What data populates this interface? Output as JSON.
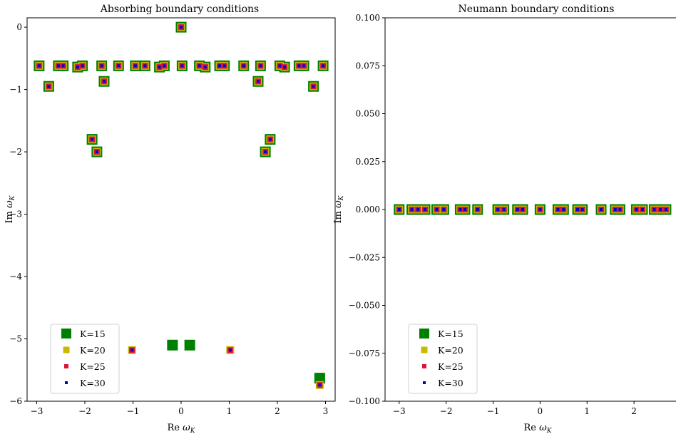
{
  "chart_data": [
    {
      "type": "scatter",
      "title": "Absorbing boundary conditions",
      "xlabel": "Re ω_K",
      "ylabel": "Im ω_K",
      "xlim": [
        -3.2,
        3.2
      ],
      "ylim": [
        -6.0,
        0.15
      ],
      "xticks": [
        -3,
        -2,
        -1,
        0,
        1,
        2,
        3
      ],
      "xtick_labels": [
        "−3",
        "−2",
        "−1",
        "0",
        "1",
        "2",
        "3"
      ],
      "yticks": [
        0,
        -1,
        -2,
        -3,
        -4,
        -5,
        -6
      ],
      "ytick_labels": [
        "0",
        "−1",
        "−2",
        "−3",
        "−4",
        "−5",
        "−6"
      ],
      "grid": false,
      "legend": "lower-left",
      "series": [
        {
          "name": "K=15",
          "color": "#008000",
          "marker": "square-large",
          "points": [
            [
              0,
              0
            ],
            [
              -2.95,
              -0.62
            ],
            [
              -2.55,
              -0.62
            ],
            [
              -2.45,
              -0.62
            ],
            [
              -2.15,
              -0.64
            ],
            [
              -2.05,
              -0.62
            ],
            [
              -1.65,
              -0.62
            ],
            [
              -1.3,
              -0.62
            ],
            [
              -0.95,
              -0.62
            ],
            [
              -0.75,
              -0.62
            ],
            [
              -0.45,
              -0.64
            ],
            [
              -0.35,
              -0.62
            ],
            [
              0.02,
              -0.62
            ],
            [
              0.38,
              -0.62
            ],
            [
              0.5,
              -0.64
            ],
            [
              0.8,
              -0.62
            ],
            [
              0.9,
              -0.62
            ],
            [
              1.3,
              -0.62
            ],
            [
              1.65,
              -0.62
            ],
            [
              2.05,
              -0.62
            ],
            [
              2.15,
              -0.64
            ],
            [
              2.45,
              -0.62
            ],
            [
              2.55,
              -0.62
            ],
            [
              2.95,
              -0.62
            ],
            [
              -2.75,
              -0.95
            ],
            [
              2.75,
              -0.95
            ],
            [
              -1.6,
              -0.87
            ],
            [
              1.6,
              -0.87
            ],
            [
              -1.85,
              -1.8
            ],
            [
              1.85,
              -1.8
            ],
            [
              -1.75,
              -2.0
            ],
            [
              1.75,
              -2.0
            ],
            [
              -0.18,
              -5.1
            ],
            [
              0.18,
              -5.1
            ],
            [
              2.88,
              -5.63
            ]
          ]
        },
        {
          "name": "K=20",
          "color": "#c8b800",
          "marker": "square",
          "points": [
            [
              0,
              0
            ],
            [
              -2.95,
              -0.62
            ],
            [
              -2.55,
              -0.62
            ],
            [
              -2.45,
              -0.62
            ],
            [
              -2.15,
              -0.64
            ],
            [
              -2.05,
              -0.62
            ],
            [
              -1.65,
              -0.62
            ],
            [
              -1.3,
              -0.62
            ],
            [
              -0.95,
              -0.62
            ],
            [
              -0.75,
              -0.62
            ],
            [
              -0.45,
              -0.64
            ],
            [
              -0.35,
              -0.62
            ],
            [
              0.02,
              -0.62
            ],
            [
              0.38,
              -0.62
            ],
            [
              0.5,
              -0.64
            ],
            [
              0.8,
              -0.62
            ],
            [
              0.9,
              -0.62
            ],
            [
              1.3,
              -0.62
            ],
            [
              1.65,
              -0.62
            ],
            [
              2.05,
              -0.62
            ],
            [
              2.15,
              -0.64
            ],
            [
              2.45,
              -0.62
            ],
            [
              2.55,
              -0.62
            ],
            [
              2.95,
              -0.62
            ],
            [
              -2.75,
              -0.95
            ],
            [
              2.75,
              -0.95
            ],
            [
              -1.6,
              -0.87
            ],
            [
              1.6,
              -0.87
            ],
            [
              -1.85,
              -1.8
            ],
            [
              1.85,
              -1.8
            ],
            [
              -1.75,
              -2.0
            ],
            [
              1.75,
              -2.0
            ],
            [
              -1.02,
              -5.18
            ],
            [
              1.02,
              -5.18
            ],
            [
              2.88,
              -5.74
            ]
          ]
        },
        {
          "name": "K=25",
          "color": "#dc143c",
          "marker": "square-small",
          "points": [
            [
              0,
              0
            ],
            [
              -2.95,
              -0.62
            ],
            [
              -2.55,
              -0.62
            ],
            [
              -2.45,
              -0.62
            ],
            [
              -2.15,
              -0.64
            ],
            [
              -2.05,
              -0.62
            ],
            [
              -1.65,
              -0.62
            ],
            [
              -1.3,
              -0.62
            ],
            [
              -0.95,
              -0.62
            ],
            [
              -0.75,
              -0.62
            ],
            [
              -0.45,
              -0.64
            ],
            [
              -0.35,
              -0.62
            ],
            [
              0.02,
              -0.62
            ],
            [
              0.38,
              -0.62
            ],
            [
              0.5,
              -0.64
            ],
            [
              0.8,
              -0.62
            ],
            [
              0.9,
              -0.62
            ],
            [
              1.3,
              -0.62
            ],
            [
              1.65,
              -0.62
            ],
            [
              2.05,
              -0.62
            ],
            [
              2.15,
              -0.64
            ],
            [
              2.45,
              -0.62
            ],
            [
              2.55,
              -0.62
            ],
            [
              2.95,
              -0.62
            ],
            [
              -2.75,
              -0.95
            ],
            [
              2.75,
              -0.95
            ],
            [
              -1.6,
              -0.87
            ],
            [
              1.6,
              -0.87
            ],
            [
              -1.85,
              -1.8
            ],
            [
              1.85,
              -1.8
            ],
            [
              -1.75,
              -2.0
            ],
            [
              1.75,
              -2.0
            ],
            [
              -1.02,
              -5.18
            ],
            [
              1.02,
              -5.18
            ],
            [
              2.88,
              -5.74
            ]
          ]
        },
        {
          "name": "K=30",
          "color": "#0000cd",
          "marker": "square-tiny",
          "points": [
            [
              0,
              0
            ],
            [
              -2.95,
              -0.62
            ],
            [
              -2.55,
              -0.62
            ],
            [
              -2.45,
              -0.62
            ],
            [
              -2.15,
              -0.64
            ],
            [
              -2.05,
              -0.62
            ],
            [
              -1.65,
              -0.62
            ],
            [
              -1.3,
              -0.62
            ],
            [
              -0.95,
              -0.62
            ],
            [
              -0.75,
              -0.62
            ],
            [
              -0.45,
              -0.64
            ],
            [
              -0.35,
              -0.62
            ],
            [
              0.02,
              -0.62
            ],
            [
              0.38,
              -0.62
            ],
            [
              0.5,
              -0.64
            ],
            [
              0.8,
              -0.62
            ],
            [
              0.9,
              -0.62
            ],
            [
              1.3,
              -0.62
            ],
            [
              1.65,
              -0.62
            ],
            [
              2.05,
              -0.62
            ],
            [
              2.15,
              -0.64
            ],
            [
              2.45,
              -0.62
            ],
            [
              2.55,
              -0.62
            ],
            [
              2.95,
              -0.62
            ],
            [
              -2.75,
              -0.95
            ],
            [
              2.75,
              -0.95
            ],
            [
              -1.6,
              -0.87
            ],
            [
              1.6,
              -0.87
            ],
            [
              -1.85,
              -1.8
            ],
            [
              1.85,
              -1.8
            ],
            [
              -1.75,
              -2.0
            ],
            [
              1.75,
              -2.0
            ],
            [
              -1.02,
              -5.18
            ],
            [
              1.02,
              -5.18
            ],
            [
              2.88,
              -5.74
            ]
          ]
        }
      ]
    },
    {
      "type": "scatter",
      "title": "Neumann boundary conditions",
      "xlabel": "Re ω_K",
      "ylabel": "Im ω_K",
      "xlim": [
        -3.3,
        3.0
      ],
      "ylim": [
        -0.1,
        0.1
      ],
      "xticks": [
        -3,
        -2,
        -1,
        0,
        1,
        2,
        3
      ],
      "xtick_labels": [
        "−3",
        "−2",
        "−1",
        "0",
        "1",
        "2",
        "3"
      ],
      "yticks": [
        0.1,
        0.075,
        0.05,
        0.025,
        0.0,
        -0.025,
        -0.05,
        -0.075,
        -0.1
      ],
      "ytick_labels": [
        "0.100",
        "0.075",
        "0.050",
        "0.025",
        "0.000",
        "−0.025",
        "−0.050",
        "−0.075",
        "−0.100"
      ],
      "grid": false,
      "legend": "lower-left",
      "series": [
        {
          "name": "K=15",
          "color": "#008000",
          "marker": "square-large",
          "points": [
            [
              -3.0,
              0
            ],
            [
              -2.73,
              0
            ],
            [
              -2.6,
              0
            ],
            [
              -2.45,
              0
            ],
            [
              -2.2,
              0
            ],
            [
              -2.05,
              0
            ],
            [
              -1.7,
              0
            ],
            [
              -1.6,
              0
            ],
            [
              -1.33,
              0
            ],
            [
              -0.9,
              0
            ],
            [
              -0.77,
              0
            ],
            [
              -0.48,
              0
            ],
            [
              -0.37,
              0
            ],
            [
              0.0,
              0
            ],
            [
              0.38,
              0
            ],
            [
              0.5,
              0
            ],
            [
              0.8,
              0
            ],
            [
              0.9,
              0
            ],
            [
              1.3,
              0
            ],
            [
              1.6,
              0
            ],
            [
              1.7,
              0
            ],
            [
              2.05,
              0
            ],
            [
              2.18,
              0
            ],
            [
              2.43,
              0
            ],
            [
              2.56,
              0
            ],
            [
              2.68,
              0
            ],
            [
              2.95,
              0
            ]
          ]
        },
        {
          "name": "K=20",
          "color": "#c8b800",
          "marker": "square",
          "points": [
            [
              -3.0,
              0
            ],
            [
              -2.73,
              0
            ],
            [
              -2.6,
              0
            ],
            [
              -2.45,
              0
            ],
            [
              -2.2,
              0
            ],
            [
              -2.05,
              0
            ],
            [
              -1.7,
              0
            ],
            [
              -1.6,
              0
            ],
            [
              -1.33,
              0
            ],
            [
              -0.9,
              0
            ],
            [
              -0.77,
              0
            ],
            [
              -0.48,
              0
            ],
            [
              -0.37,
              0
            ],
            [
              0.0,
              0
            ],
            [
              0.38,
              0
            ],
            [
              0.5,
              0
            ],
            [
              0.8,
              0
            ],
            [
              0.9,
              0
            ],
            [
              1.3,
              0
            ],
            [
              1.6,
              0
            ],
            [
              1.7,
              0
            ],
            [
              2.05,
              0
            ],
            [
              2.18,
              0
            ],
            [
              2.43,
              0
            ],
            [
              2.56,
              0
            ],
            [
              2.68,
              0
            ],
            [
              2.95,
              0
            ]
          ]
        },
        {
          "name": "K=25",
          "color": "#dc143c",
          "marker": "square-small",
          "points": [
            [
              -3.0,
              0
            ],
            [
              -2.73,
              0
            ],
            [
              -2.6,
              0
            ],
            [
              -2.45,
              0
            ],
            [
              -2.2,
              0
            ],
            [
              -2.05,
              0
            ],
            [
              -1.7,
              0
            ],
            [
              -1.6,
              0
            ],
            [
              -1.33,
              0
            ],
            [
              -0.9,
              0
            ],
            [
              -0.77,
              0
            ],
            [
              -0.48,
              0
            ],
            [
              -0.37,
              0
            ],
            [
              0.0,
              0
            ],
            [
              0.38,
              0
            ],
            [
              0.5,
              0
            ],
            [
              0.8,
              0
            ],
            [
              0.9,
              0
            ],
            [
              1.3,
              0
            ],
            [
              1.6,
              0
            ],
            [
              1.7,
              0
            ],
            [
              2.05,
              0
            ],
            [
              2.18,
              0
            ],
            [
              2.43,
              0
            ],
            [
              2.56,
              0
            ],
            [
              2.68,
              0
            ],
            [
              2.95,
              0
            ]
          ]
        },
        {
          "name": "K=30",
          "color": "#0000cd",
          "marker": "square-tiny",
          "points": [
            [
              -3.0,
              0
            ],
            [
              -2.73,
              0
            ],
            [
              -2.6,
              0
            ],
            [
              -2.45,
              0
            ],
            [
              -2.2,
              0
            ],
            [
              -2.05,
              0
            ],
            [
              -1.7,
              0
            ],
            [
              -1.6,
              0
            ],
            [
              -1.33,
              0
            ],
            [
              -0.9,
              0
            ],
            [
              -0.77,
              0
            ],
            [
              -0.48,
              0
            ],
            [
              -0.37,
              0
            ],
            [
              0.0,
              0
            ],
            [
              0.38,
              0
            ],
            [
              0.5,
              0
            ],
            [
              0.8,
              0
            ],
            [
              0.9,
              0
            ],
            [
              1.3,
              0
            ],
            [
              1.6,
              0
            ],
            [
              1.7,
              0
            ],
            [
              2.05,
              0
            ],
            [
              2.18,
              0
            ],
            [
              2.43,
              0
            ],
            [
              2.56,
              0
            ],
            [
              2.68,
              0
            ],
            [
              2.95,
              0
            ]
          ]
        }
      ]
    }
  ]
}
